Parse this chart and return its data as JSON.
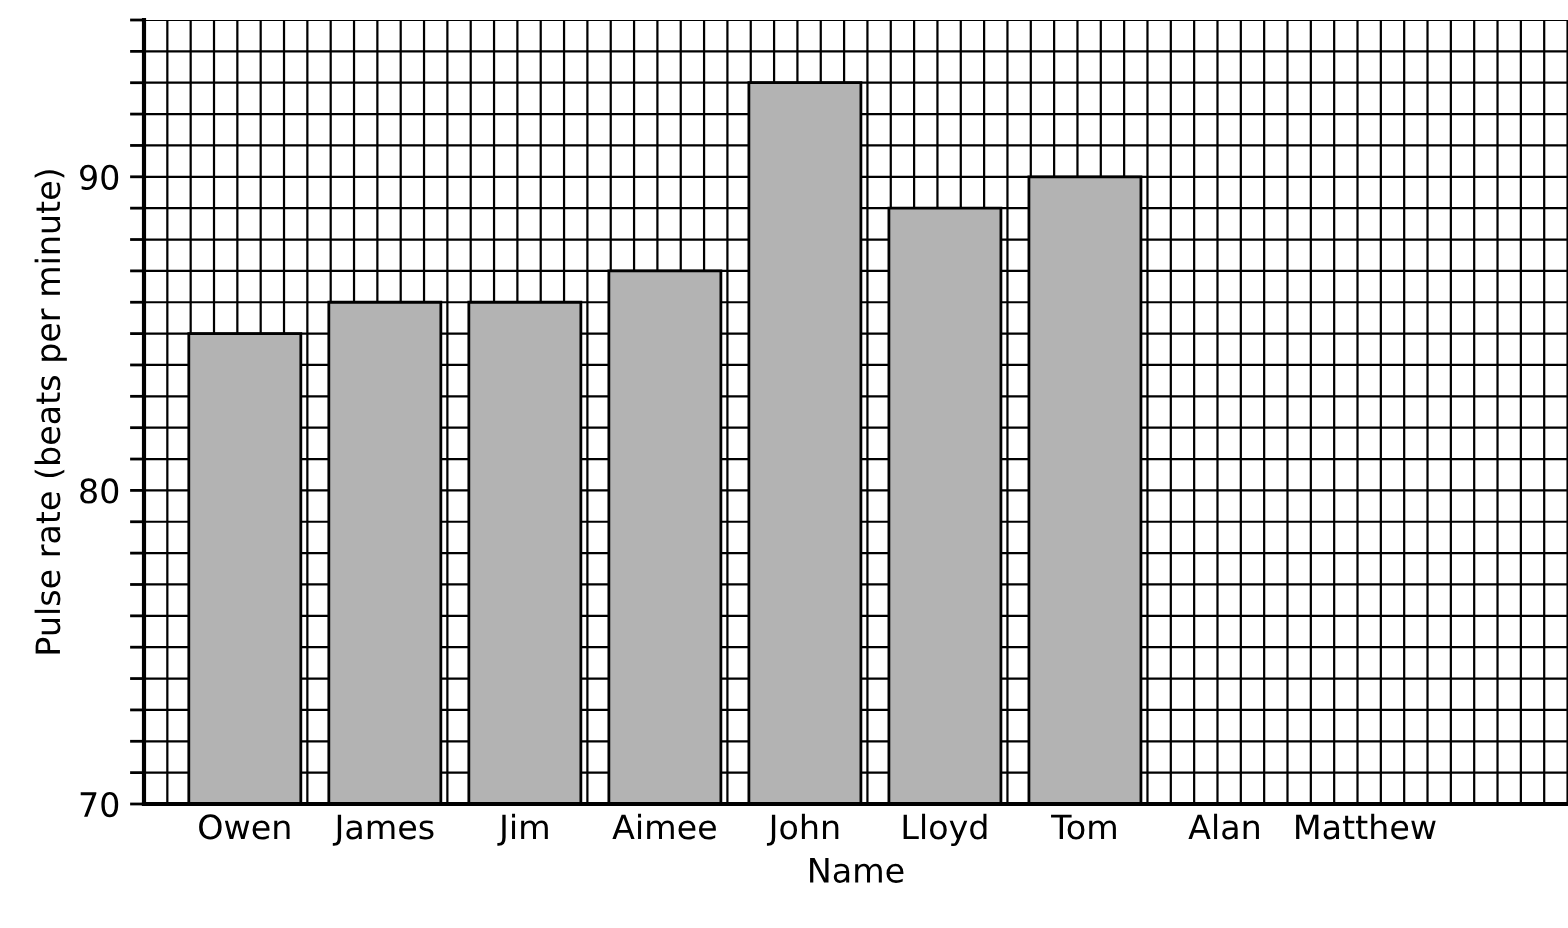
{
  "chart_data": {
    "type": "bar",
    "xlabel": "Name",
    "ylabel": "Pulse rate (beats per minute)",
    "categories": [
      "Owen",
      "James",
      "Jim",
      "Aimee",
      "John",
      "Lloyd",
      "Tom",
      "Alan",
      "Matthew"
    ],
    "values": [
      85,
      86,
      86,
      87,
      93,
      89,
      90,
      null,
      null
    ],
    "color": "#b3b3b3",
    "ylim": [
      70,
      95
    ],
    "yticks": [
      70,
      {
        "value": 71,
        "label": null
      },
      {
        "value": 72,
        "label": null
      },
      {
        "value": 73,
        "label": null
      },
      {
        "value": 74,
        "label": null
      },
      {
        "value": 75,
        "label": null
      },
      {
        "value": 76,
        "label": null
      },
      {
        "value": 77,
        "label": null
      },
      {
        "value": 78,
        "label": null
      },
      {
        "value": 79,
        "label": null
      },
      80,
      {
        "value": 81,
        "label": null
      },
      {
        "value": 82,
        "label": null
      },
      {
        "value": 83,
        "label": null
      },
      {
        "value": 84,
        "label": null
      },
      {
        "value": 85,
        "label": null
      },
      {
        "value": 86,
        "label": null
      },
      {
        "value": 87,
        "label": null
      },
      {
        "value": 88,
        "label": null
      },
      {
        "value": 89,
        "label": null
      },
      90,
      {
        "value": 91,
        "label": null
      },
      {
        "value": 92,
        "label": null
      },
      {
        "value": 93,
        "label": null
      },
      {
        "value": 94,
        "label": null
      },
      {
        "value": 95,
        "label": null
      }
    ],
    "grid": true
  }
}
